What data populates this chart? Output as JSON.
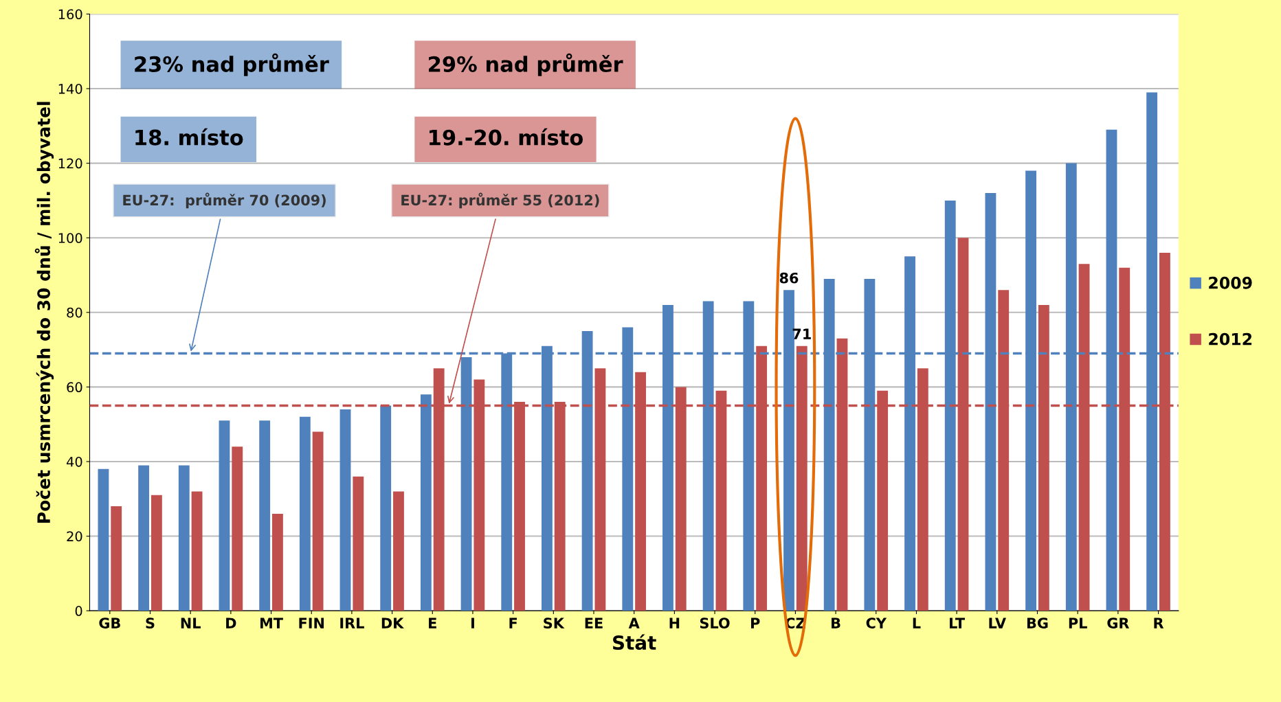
{
  "chart_data": {
    "type": "bar",
    "categories": [
      "GB",
      "S",
      "NL",
      "D",
      "MT",
      "FIN",
      "IRL",
      "DK",
      "E",
      "I",
      "F",
      "SK",
      "EE",
      "A",
      "H",
      "SLO",
      "P",
      "CZ",
      "B",
      "CY",
      "L",
      "LT",
      "LV",
      "BG",
      "PL",
      "GR",
      "R"
    ],
    "series": [
      {
        "name": "2009",
        "color": "#4f81bd",
        "values": [
          38,
          39,
          39,
          51,
          51,
          52,
          54,
          55,
          58,
          68,
          69,
          71,
          75,
          76,
          82,
          83,
          83,
          86,
          89,
          89,
          95,
          110,
          112,
          118,
          120,
          129,
          139
        ],
        "value_labels": [
          null,
          null,
          null,
          null,
          null,
          null,
          null,
          null,
          null,
          null,
          null,
          null,
          null,
          null,
          null,
          null,
          null,
          "86",
          null,
          null,
          null,
          null,
          null,
          null,
          null,
          null,
          null
        ]
      },
      {
        "name": "2012",
        "color": "#c0504d",
        "values": [
          28,
          31,
          32,
          44,
          26,
          48,
          36,
          32,
          65,
          62,
          56,
          56,
          65,
          64,
          60,
          59,
          71,
          71,
          73,
          59,
          65,
          100,
          86,
          82,
          93,
          92,
          96
        ],
        "value_labels": [
          null,
          null,
          null,
          null,
          null,
          null,
          null,
          null,
          null,
          null,
          null,
          null,
          null,
          null,
          null,
          null,
          null,
          "71",
          null,
          null,
          null,
          null,
          null,
          null,
          null,
          null,
          null
        ]
      }
    ],
    "xlabel": "Stát",
    "ylabel": "Počet usmrcených do 30 dnů / mil. obyvatel",
    "ylim": [
      0,
      160
    ],
    "yticks": [
      0,
      20,
      40,
      60,
      80,
      100,
      120,
      140,
      160
    ],
    "grid": "y",
    "legend": "right",
    "ref_lines": [
      {
        "axis": "y",
        "value": 69,
        "label": "EU-27:  průměr 70 (2009)",
        "color": "#4f81bd",
        "line_style": "dashed"
      },
      {
        "axis": "y",
        "value": 55,
        "label": "EU-27: průměr 55 (2012)",
        "color": "#c0504d",
        "line_style": "dashed"
      }
    ],
    "annotations": [
      "23% nad průměr",
      "29% nad průměr",
      "18. místo",
      "19.-20. místo"
    ]
  }
}
